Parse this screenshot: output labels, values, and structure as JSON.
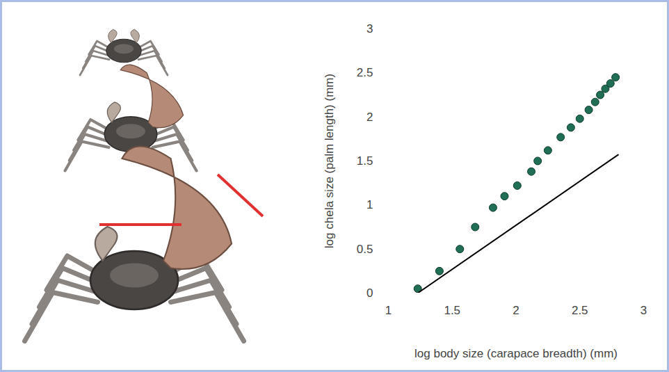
{
  "chart_data": {
    "type": "scatter",
    "xlabel": "log body size (carapace breadth) (mm)",
    "ylabel": "log chela size (palm length) (mm)",
    "xlim": [
      1,
      3
    ],
    "ylim": [
      0,
      3
    ],
    "xticks": [
      1,
      1.5,
      2,
      2.5,
      3
    ],
    "yticks": [
      0,
      0.5,
      1,
      1.5,
      2,
      2.5,
      3
    ],
    "grid": false,
    "series": [
      {
        "type": "scatter",
        "color": "#1f6e55",
        "marker": "circle",
        "x": [
          1.23,
          1.4,
          1.56,
          1.68,
          1.82,
          1.91,
          2.01,
          2.12,
          2.17,
          2.25,
          2.35,
          2.43,
          2.5,
          2.57,
          2.62,
          2.66,
          2.7,
          2.74,
          2.78
        ],
        "values": [
          0.05,
          0.25,
          0.5,
          0.75,
          0.97,
          1.1,
          1.22,
          1.38,
          1.5,
          1.62,
          1.77,
          1.88,
          1.98,
          2.08,
          2.17,
          2.25,
          2.32,
          2.38,
          2.45
        ]
      },
      {
        "type": "line",
        "color": "#000000",
        "line_style": "solid",
        "x": [
          1.23,
          2.8
        ],
        "values": [
          0,
          1.57
        ]
      }
    ]
  }
}
